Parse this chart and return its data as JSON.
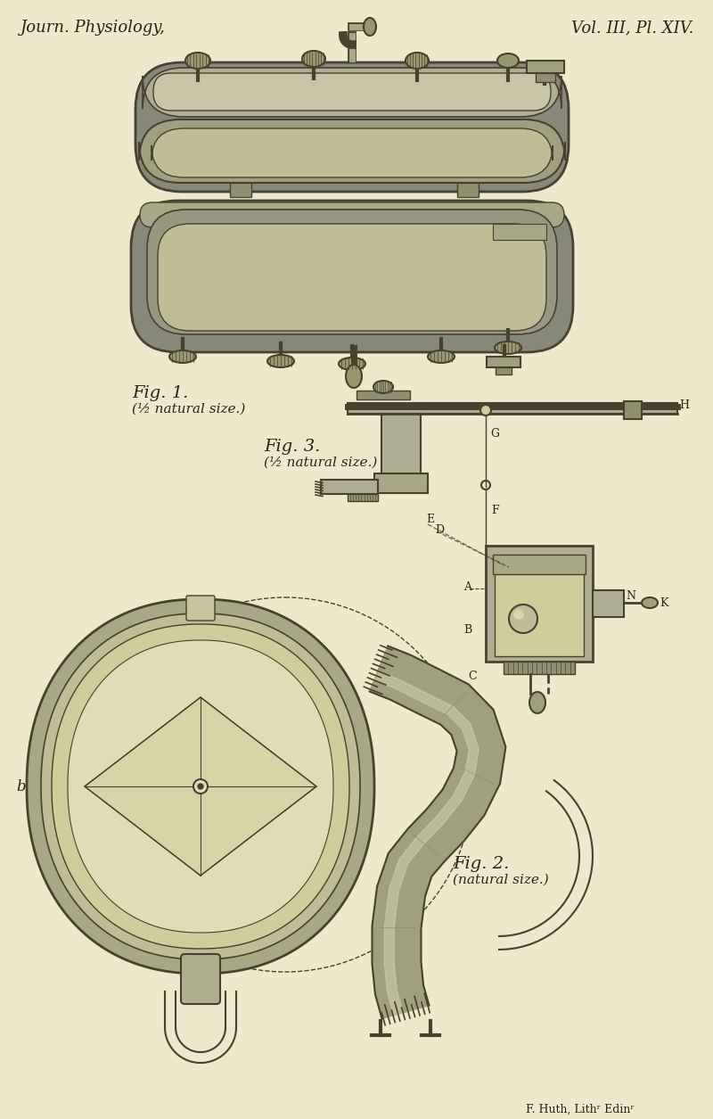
{
  "background_color": "#eee8cc",
  "title_left": "Journ. Physiology,",
  "title_right": "Vol. III, Pl. XIV.",
  "caption1": "Fig. 1.",
  "caption1_sub": "(½ natural size.)",
  "caption2": "Fig. 2.",
  "caption2_sub": "(natural size.)",
  "caption3": "Fig. 3.",
  "caption3_sub": "(½ natural size.)",
  "footer": "F. Huth, Lithʳ Edinʳ",
  "text_color": "#2a2318",
  "line_color": "#4a4030",
  "shading_color": "#909070",
  "light_color": "#d8d4b0",
  "fig_width": 8.0,
  "fig_height": 12.55
}
